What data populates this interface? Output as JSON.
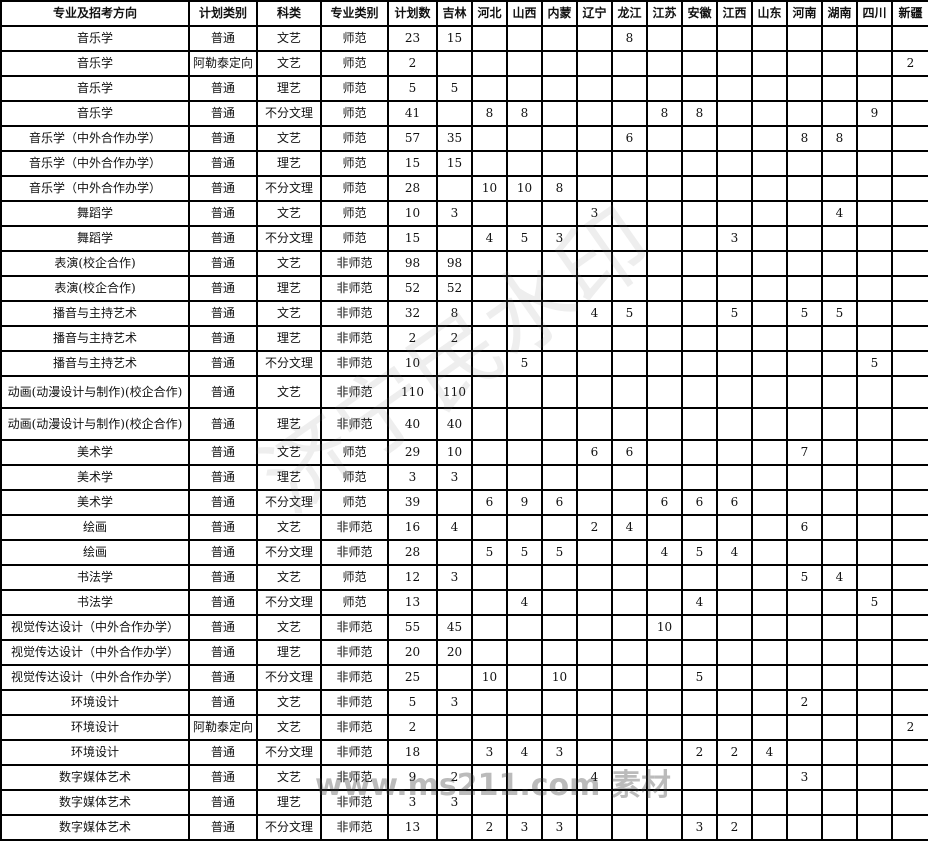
{
  "headers": [
    "专业及招考方向",
    "计划类别",
    "科类",
    "专业类别",
    "计划数",
    "吉林",
    "河北",
    "山西",
    "内蒙",
    "辽宁",
    "龙江",
    "江苏",
    "安徽",
    "江西",
    "山东",
    "河南",
    "湖南",
    "四川",
    "新疆"
  ],
  "rows": [
    [
      "音乐学",
      "普通",
      "文艺",
      "师范",
      "23",
      "15",
      "",
      "",
      "",
      "",
      "8",
      "",
      "",
      "",
      "",
      "",
      "",
      "",
      ""
    ],
    [
      "音乐学",
      "阿勒泰定向",
      "文艺",
      "师范",
      "2",
      "",
      "",
      "",
      "",
      "",
      "",
      "",
      "",
      "",
      "",
      "",
      "",
      "",
      "2"
    ],
    [
      "音乐学",
      "普通",
      "理艺",
      "师范",
      "5",
      "5",
      "",
      "",
      "",
      "",
      "",
      "",
      "",
      "",
      "",
      "",
      "",
      "",
      ""
    ],
    [
      "音乐学",
      "普通",
      "不分文理",
      "师范",
      "41",
      "",
      "8",
      "8",
      "",
      "",
      "",
      "8",
      "8",
      "",
      "",
      "",
      "",
      "9",
      ""
    ],
    [
      "音乐学（中外合作办学）",
      "普通",
      "文艺",
      "师范",
      "57",
      "35",
      "",
      "",
      "",
      "",
      "6",
      "",
      "",
      "",
      "",
      "8",
      "8",
      "",
      ""
    ],
    [
      "音乐学（中外合作办学）",
      "普通",
      "理艺",
      "师范",
      "15",
      "15",
      "",
      "",
      "",
      "",
      "",
      "",
      "",
      "",
      "",
      "",
      "",
      "",
      ""
    ],
    [
      "音乐学（中外合作办学）",
      "普通",
      "不分文理",
      "师范",
      "28",
      "",
      "10",
      "10",
      "8",
      "",
      "",
      "",
      "",
      "",
      "",
      "",
      "",
      "",
      ""
    ],
    [
      "舞蹈学",
      "普通",
      "文艺",
      "师范",
      "10",
      "3",
      "",
      "",
      "",
      "3",
      "",
      "",
      "",
      "",
      "",
      "",
      "4",
      "",
      ""
    ],
    [
      "舞蹈学",
      "普通",
      "不分文理",
      "师范",
      "15",
      "",
      "4",
      "5",
      "3",
      "",
      "",
      "",
      "",
      "3",
      "",
      "",
      "",
      "",
      ""
    ],
    [
      "表演(校企合作)",
      "普通",
      "文艺",
      "非师范",
      "98",
      "98",
      "",
      "",
      "",
      "",
      "",
      "",
      "",
      "",
      "",
      "",
      "",
      "",
      ""
    ],
    [
      "表演(校企合作)",
      "普通",
      "理艺",
      "非师范",
      "52",
      "52",
      "",
      "",
      "",
      "",
      "",
      "",
      "",
      "",
      "",
      "",
      "",
      "",
      ""
    ],
    [
      "播音与主持艺术",
      "普通",
      "文艺",
      "非师范",
      "32",
      "8",
      "",
      "",
      "",
      "4",
      "5",
      "",
      "",
      "5",
      "",
      "5",
      "5",
      "",
      ""
    ],
    [
      "播音与主持艺术",
      "普通",
      "理艺",
      "非师范",
      "2",
      "2",
      "",
      "",
      "",
      "",
      "",
      "",
      "",
      "",
      "",
      "",
      "",
      "",
      ""
    ],
    [
      "播音与主持艺术",
      "普通",
      "不分文理",
      "非师范",
      "10",
      "",
      "",
      "5",
      "",
      "",
      "",
      "",
      "",
      "",
      "",
      "",
      "",
      "5",
      ""
    ],
    [
      "动画(动漫设计与制作)(校企合作)",
      "普通",
      "文艺",
      "非师范",
      "110",
      "110",
      "",
      "",
      "",
      "",
      "",
      "",
      "",
      "",
      "",
      "",
      "",
      "",
      ""
    ],
    [
      "动画(动漫设计与制作)(校企合作)",
      "普通",
      "理艺",
      "非师范",
      "40",
      "40",
      "",
      "",
      "",
      "",
      "",
      "",
      "",
      "",
      "",
      "",
      "",
      "",
      ""
    ],
    [
      "美术学",
      "普通",
      "文艺",
      "师范",
      "29",
      "10",
      "",
      "",
      "",
      "6",
      "6",
      "",
      "",
      "",
      "",
      "7",
      "",
      "",
      ""
    ],
    [
      "美术学",
      "普通",
      "理艺",
      "师范",
      "3",
      "3",
      "",
      "",
      "",
      "",
      "",
      "",
      "",
      "",
      "",
      "",
      "",
      "",
      ""
    ],
    [
      "美术学",
      "普通",
      "不分文理",
      "师范",
      "39",
      "",
      "6",
      "9",
      "6",
      "",
      "",
      "6",
      "6",
      "6",
      "",
      "",
      "",
      "",
      ""
    ],
    [
      "绘画",
      "普通",
      "文艺",
      "非师范",
      "16",
      "4",
      "",
      "",
      "",
      "2",
      "4",
      "",
      "",
      "",
      "",
      "6",
      "",
      "",
      ""
    ],
    [
      "绘画",
      "普通",
      "不分文理",
      "非师范",
      "28",
      "",
      "5",
      "5",
      "5",
      "",
      "",
      "4",
      "5",
      "4",
      "",
      "",
      "",
      "",
      ""
    ],
    [
      "书法学",
      "普通",
      "文艺",
      "师范",
      "12",
      "3",
      "",
      "",
      "",
      "",
      "",
      "",
      "",
      "",
      "",
      "5",
      "4",
      "",
      ""
    ],
    [
      "书法学",
      "普通",
      "不分文理",
      "师范",
      "13",
      "",
      "",
      "4",
      "",
      "",
      "",
      "",
      "4",
      "",
      "",
      "",
      "",
      "5",
      ""
    ],
    [
      "视觉传达设计（中外合作办学）",
      "普通",
      "文艺",
      "非师范",
      "55",
      "45",
      "",
      "",
      "",
      "",
      "",
      "10",
      "",
      "",
      "",
      "",
      "",
      "",
      ""
    ],
    [
      "视觉传达设计（中外合作办学）",
      "普通",
      "理艺",
      "非师范",
      "20",
      "20",
      "",
      "",
      "",
      "",
      "",
      "",
      "",
      "",
      "",
      "",
      "",
      "",
      ""
    ],
    [
      "视觉传达设计（中外合作办学）",
      "普通",
      "不分文理",
      "非师范",
      "25",
      "",
      "10",
      "",
      "10",
      "",
      "",
      "",
      "5",
      "",
      "",
      "",
      "",
      "",
      ""
    ],
    [
      "环境设计",
      "普通",
      "文艺",
      "非师范",
      "5",
      "3",
      "",
      "",
      "",
      "",
      "",
      "",
      "",
      "",
      "",
      "2",
      "",
      "",
      ""
    ],
    [
      "环境设计",
      "阿勒泰定向",
      "文艺",
      "非师范",
      "2",
      "",
      "",
      "",
      "",
      "",
      "",
      "",
      "",
      "",
      "",
      "",
      "",
      "",
      "2"
    ],
    [
      "环境设计",
      "普通",
      "不分文理",
      "非师范",
      "18",
      "",
      "3",
      "4",
      "3",
      "",
      "",
      "",
      "2",
      "2",
      "4",
      "",
      "",
      "",
      ""
    ],
    [
      "数字媒体艺术",
      "普通",
      "文艺",
      "非师范",
      "9",
      "2",
      "",
      "",
      "",
      "4",
      "",
      "",
      "",
      "",
      "",
      "3",
      "",
      "",
      ""
    ],
    [
      "数字媒体艺术",
      "普通",
      "理艺",
      "非师范",
      "3",
      "3",
      "",
      "",
      "",
      "",
      "",
      "",
      "",
      "",
      "",
      "",
      "",
      "",
      ""
    ],
    [
      "数字媒体艺术",
      "普通",
      "不分文理",
      "非师范",
      "13",
      "",
      "2",
      "3",
      "3",
      "",
      "",
      "",
      "3",
      "2",
      "",
      "",
      "",
      "",
      ""
    ]
  ],
  "watermarks": {
    "main": "济宁民水印",
    "site": "www.ms211.com 素材"
  }
}
